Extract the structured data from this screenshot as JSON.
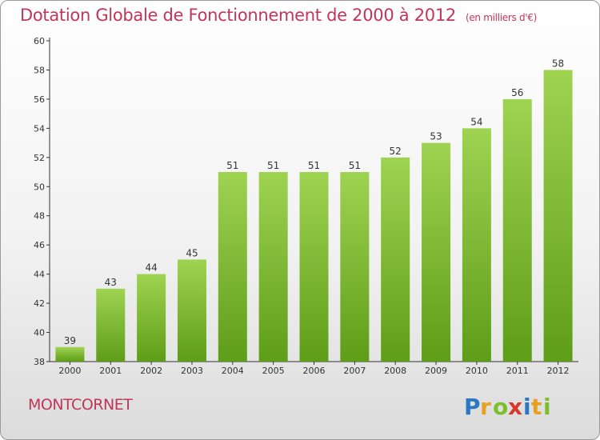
{
  "title": "Dotation Globale de Fonctionnement de 2000 à 2012",
  "unit_note": "(en milliers d'€)",
  "town": "MONTCORNET",
  "logo_text": "Proxiti",
  "colors": {
    "title": "#c0365a",
    "bar_top": "#9fd352",
    "bar_bottom": "#5e9d18",
    "axis": "#333333"
  },
  "chart_data": {
    "type": "bar",
    "title": "Dotation Globale de Fonctionnement de 2000 à 2012",
    "subtitle": "(en milliers d'€)",
    "categories": [
      "2000",
      "2001",
      "2002",
      "2003",
      "2004",
      "2005",
      "2006",
      "2007",
      "2008",
      "2009",
      "2010",
      "2011",
      "2012"
    ],
    "values": [
      39,
      43,
      44,
      45,
      51,
      51,
      51,
      51,
      52,
      53,
      54,
      56,
      58
    ],
    "ylim": [
      38,
      60
    ],
    "yticks": [
      38,
      40,
      42,
      44,
      46,
      48,
      50,
      52,
      54,
      56,
      58,
      60
    ],
    "grid": false,
    "legend": "none"
  }
}
